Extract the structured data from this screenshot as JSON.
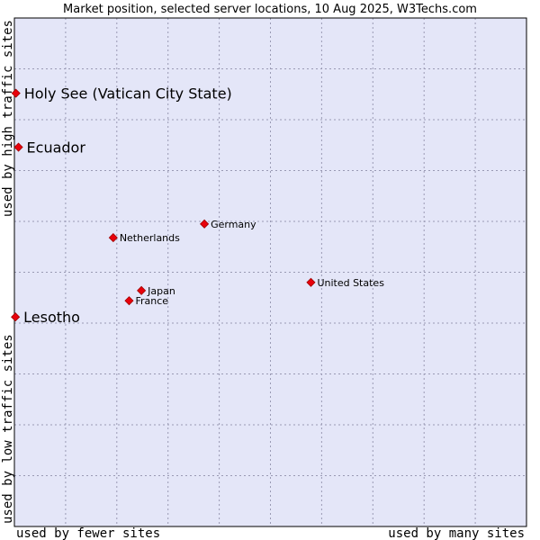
{
  "chart_data": {
    "type": "scatter",
    "title": "Market position, selected server locations, 10 Aug 2025, W3Techs.com",
    "xlabel_left": "used by fewer sites",
    "xlabel_right": "used by many sites",
    "ylabel_bottom": "used by low traffic sites",
    "ylabel_top": "used by high traffic sites",
    "xlim": [
      0,
      100
    ],
    "ylim": [
      0,
      100
    ],
    "grid": true,
    "colors": {
      "plot_bg": "#e4e6f8",
      "grid": "#9a9ab4",
      "point": "#e8000b",
      "point_edge": "#a00000"
    },
    "points": [
      {
        "label": "Holy See (Vatican City State)",
        "x": 0.3,
        "y": 85.2,
        "highlight": true
      },
      {
        "label": "Ecuador",
        "x": 0.8,
        "y": 74.6,
        "highlight": true
      },
      {
        "label": "Lesotho",
        "x": 0.2,
        "y": 41.2,
        "highlight": true
      },
      {
        "label": "Germany",
        "x": 37.1,
        "y": 59.5,
        "highlight": false
      },
      {
        "label": "Netherlands",
        "x": 19.3,
        "y": 56.8,
        "highlight": false
      },
      {
        "label": "United States",
        "x": 57.9,
        "y": 48.0,
        "highlight": false
      },
      {
        "label": "Japan",
        "x": 24.8,
        "y": 46.4,
        "highlight": false
      },
      {
        "label": "France",
        "x": 22.4,
        "y": 44.4,
        "highlight": false
      }
    ]
  }
}
